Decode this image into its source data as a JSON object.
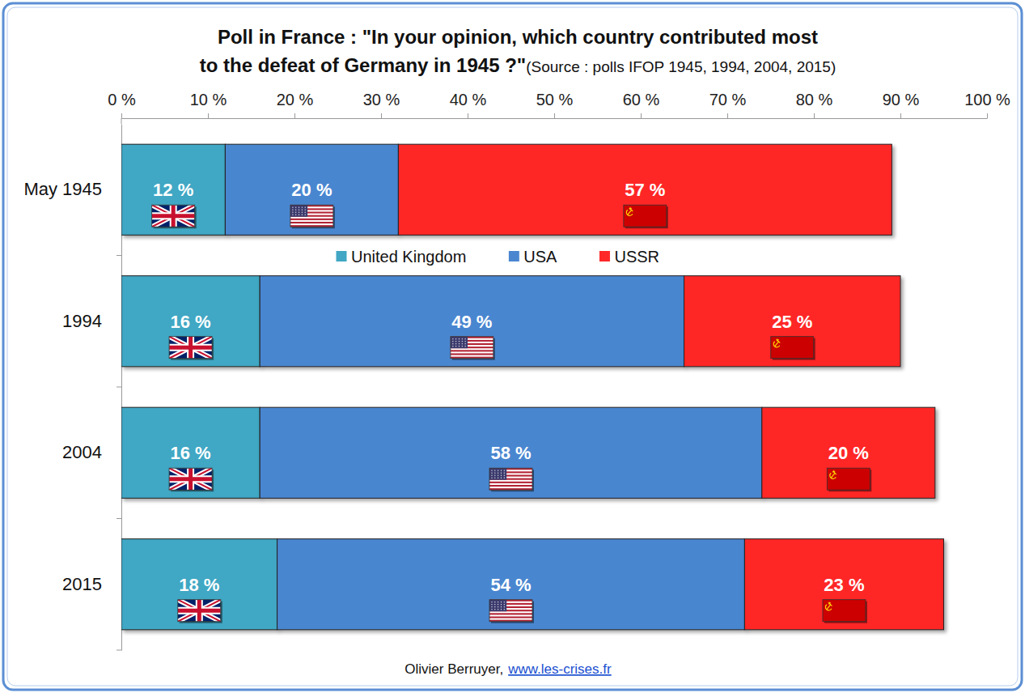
{
  "chart_data": {
    "type": "bar",
    "orientation": "horizontal",
    "stacked": true,
    "data_labels": true,
    "grid": false,
    "legend": "middle",
    "title": [
      "Poll in France : \"In your opinion, which country contributed most",
      "to the defeat of Germany in 1945 ?\""
    ],
    "subtitle": "(Source : polls IFOP 1945, 1994, 2004, 2015)",
    "annotations": [
      "Olivier Berruyer,",
      "www.les-crises.fr"
    ],
    "categories": [
      "May 1945",
      "1994",
      "2004",
      "2015"
    ],
    "series": [
      {
        "name": "United Kingdom",
        "color": "#41a7c4",
        "values": [
          12,
          16,
          16,
          18
        ],
        "value_labels": [
          "12 %",
          "16 %",
          "16 %",
          "18 %"
        ]
      },
      {
        "name": "USA",
        "color": "#4a86d0",
        "values": [
          20,
          49,
          58,
          54
        ],
        "value_labels": [
          "20 %",
          "49 %",
          "58 %",
          "54 %"
        ]
      },
      {
        "name": "USSR",
        "color": "#ff2828",
        "values": [
          57,
          25,
          20,
          23
        ],
        "value_labels": [
          "57 %",
          "25 %",
          "20 %",
          "23 %"
        ]
      }
    ],
    "xlim": [
      0,
      100
    ],
    "xticks": [
      {
        "value": 0,
        "label": "0 %"
      },
      {
        "value": 10,
        "label": "10 %"
      },
      {
        "value": 20,
        "label": "20 %"
      },
      {
        "value": 30,
        "label": "30 %"
      },
      {
        "value": 40,
        "label": "40 %"
      },
      {
        "value": 50,
        "label": "50 %"
      },
      {
        "value": 60,
        "label": "60 %"
      },
      {
        "value": 70,
        "label": "70 %"
      },
      {
        "value": 80,
        "label": "80 %"
      },
      {
        "value": 90,
        "label": "90 %"
      },
      {
        "value": 100,
        "label": "100 %"
      }
    ]
  }
}
